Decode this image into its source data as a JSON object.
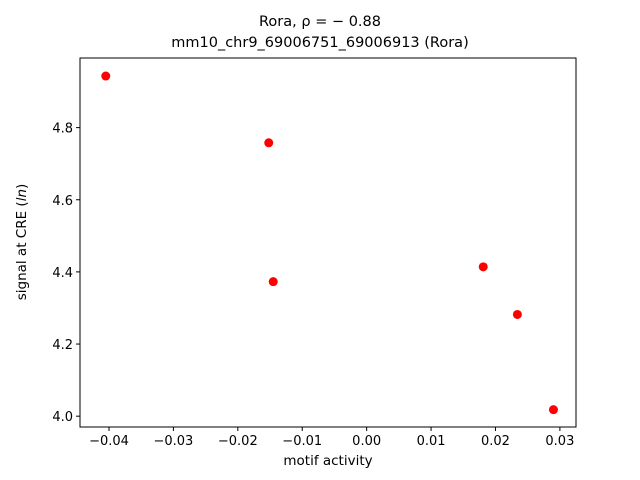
{
  "chart_data": {
    "type": "scatter",
    "title_prefix": "Rora, ",
    "title_rho": "ρ = − 0.88",
    "subtitle": "mm10_chr9_69006751_69006913 (Rora)",
    "xlabel": "motif activity",
    "ylabel_prefix": "signal at CRE (",
    "ylabel_em": "ln",
    "ylabel_suffix": ")",
    "xlim": [
      -0.0445,
      0.0325
    ],
    "ylim": [
      3.97,
      4.993
    ],
    "xticks": [
      -0.04,
      -0.03,
      -0.02,
      -0.01,
      0.0,
      0.01,
      0.02,
      0.03
    ],
    "xtick_labels": [
      "−0.04",
      "−0.03",
      "−0.02",
      "−0.01",
      "0.00",
      "0.01",
      "0.02",
      "0.03"
    ],
    "yticks": [
      4.0,
      4.2,
      4.4,
      4.6,
      4.8
    ],
    "ytick_labels": [
      "4.0",
      "4.2",
      "4.4",
      "4.6",
      "4.8"
    ],
    "grid": false,
    "marker_color": "#ff0000",
    "points": [
      {
        "x": -0.0405,
        "y": 4.943
      },
      {
        "x": -0.0152,
        "y": 4.758
      },
      {
        "x": -0.0145,
        "y": 4.373
      },
      {
        "x": 0.0181,
        "y": 4.414
      },
      {
        "x": 0.0234,
        "y": 4.282
      },
      {
        "x": 0.029,
        "y": 4.018
      }
    ]
  }
}
